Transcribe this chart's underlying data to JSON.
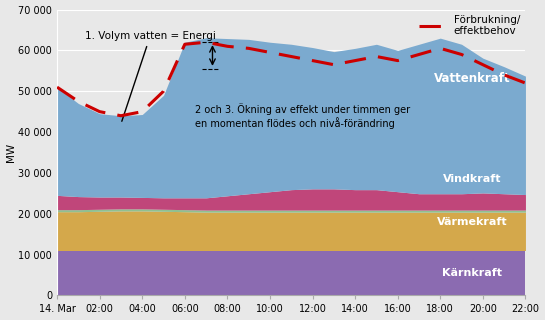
{
  "ylabel": "MW",
  "xlim": [
    0,
    22
  ],
  "ylim": [
    0,
    70000
  ],
  "yticks": [
    0,
    10000,
    20000,
    30000,
    40000,
    50000,
    60000,
    70000
  ],
  "ytick_labels": [
    "0",
    "10 000",
    "20 000",
    "30 000",
    "40 000",
    "50 000",
    "60 000",
    "70 000"
  ],
  "xtick_positions": [
    0,
    2,
    4,
    6,
    8,
    10,
    12,
    14,
    16,
    18,
    20,
    22
  ],
  "xtick_labels": [
    "14. Mar",
    "02:00",
    "04:00",
    "06:00",
    "08:00",
    "10:00",
    "12:00",
    "14:00",
    "16:00",
    "18:00",
    "20:00",
    "22:00"
  ],
  "background_color": "#e8e8e8",
  "colors": {
    "karnkraft": "#8B6BB1",
    "varmekraft": "#D4A84B",
    "green_thin": "#90C090",
    "vindkraft": "#C0467A",
    "vattenkraft": "#7BAACF",
    "forbrukning": "#CC0000"
  },
  "annotations": {
    "text1": "1. Volym vatten = Energi",
    "text2": "2 och 3. Ökning av effekt under timmen ger\nen momentan flödes och nivå-förändring",
    "legend_label": "Förbrukning/\neffektbehov"
  },
  "labels": {
    "karnkraft": "Kärnkraft",
    "varmekraft": "Värmekraft",
    "vindkraft": "Vindkraft",
    "vattenkraft": "Vattenkraft"
  },
  "x": [
    0,
    1,
    2,
    3,
    4,
    5,
    6,
    7,
    8,
    9,
    10,
    11,
    12,
    13,
    14,
    15,
    16,
    17,
    18,
    19,
    20,
    21,
    22
  ],
  "karnkraft": [
    11000,
    11000,
    11000,
    11000,
    11000,
    11000,
    11000,
    11000,
    11000,
    11000,
    11000,
    11000,
    11000,
    11000,
    11000,
    11000,
    11000,
    11000,
    11000,
    11000,
    11000,
    11000,
    11000
  ],
  "varmekraft": [
    9500,
    9500,
    9600,
    9700,
    9700,
    9600,
    9500,
    9400,
    9400,
    9400,
    9400,
    9400,
    9400,
    9400,
    9400,
    9400,
    9400,
    9400,
    9400,
    9400,
    9400,
    9400,
    9400
  ],
  "green_thin": [
    500,
    500,
    500,
    500,
    500,
    500,
    500,
    500,
    500,
    500,
    500,
    500,
    500,
    500,
    500,
    500,
    500,
    500,
    500,
    500,
    500,
    500,
    500
  ],
  "vindkraft": [
    3500,
    3200,
    3000,
    2900,
    2800,
    2800,
    2900,
    3000,
    3500,
    4000,
    4500,
    5000,
    5200,
    5200,
    5000,
    5000,
    4500,
    4000,
    4000,
    4000,
    4200,
    4000,
    3800
  ],
  "vattenkraft": [
    26500,
    22800,
    20400,
    19900,
    20300,
    25100,
    38100,
    39200,
    38500,
    37800,
    36600,
    35600,
    34600,
    33600,
    34600,
    35600,
    34600,
    36600,
    38100,
    36600,
    33000,
    31100,
    29000
  ],
  "forbrukning": [
    51000,
    47500,
    45000,
    44000,
    45000,
    50000,
    61500,
    62000,
    61000,
    60500,
    59500,
    58500,
    57500,
    56500,
    57500,
    58500,
    57500,
    59000,
    60500,
    59000,
    56500,
    54000,
    52000
  ]
}
